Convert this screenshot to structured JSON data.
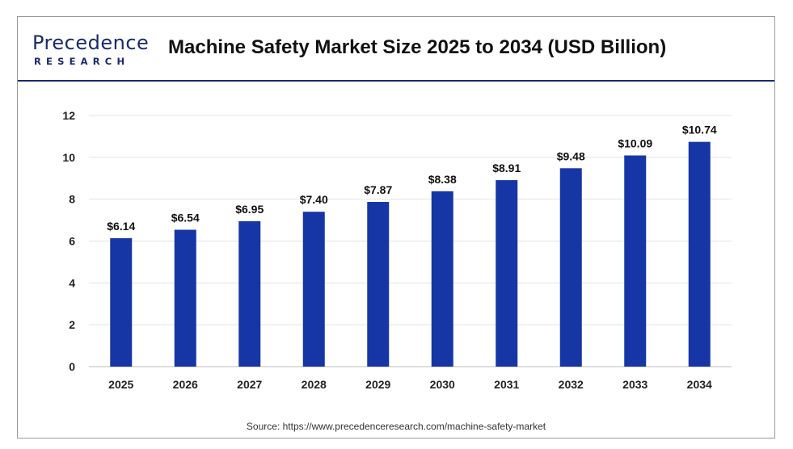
{
  "brand": {
    "name": "Precedence",
    "sub": "RESEARCH"
  },
  "source": "Source: https://www.precedenceresearch.com/machine-safety-market",
  "colors": {
    "bar": "#1636a6",
    "brand": "#1b2a6b",
    "grid": "#e3e3e3"
  },
  "chart_data": {
    "type": "bar",
    "title": "Machine Safety Market Size 2025 to 2034 (USD Billion)",
    "xlabel": "",
    "ylabel": "",
    "categories": [
      "2025",
      "2026",
      "2027",
      "2028",
      "2029",
      "2030",
      "2031",
      "2032",
      "2033",
      "2034"
    ],
    "values": [
      6.14,
      6.54,
      6.95,
      7.4,
      7.87,
      8.38,
      8.91,
      9.48,
      10.09,
      10.74
    ],
    "data_labels": [
      "$6.14",
      "$6.54",
      "$6.95",
      "$7.40",
      "$7.87",
      "$8.38",
      "$8.91",
      "$9.48",
      "$10.09",
      "$10.74"
    ],
    "yticks": [
      "0",
      "2",
      "4",
      "6",
      "8",
      "10",
      "12"
    ],
    "ylim": [
      0,
      12
    ],
    "grid": true,
    "legend": "none"
  }
}
